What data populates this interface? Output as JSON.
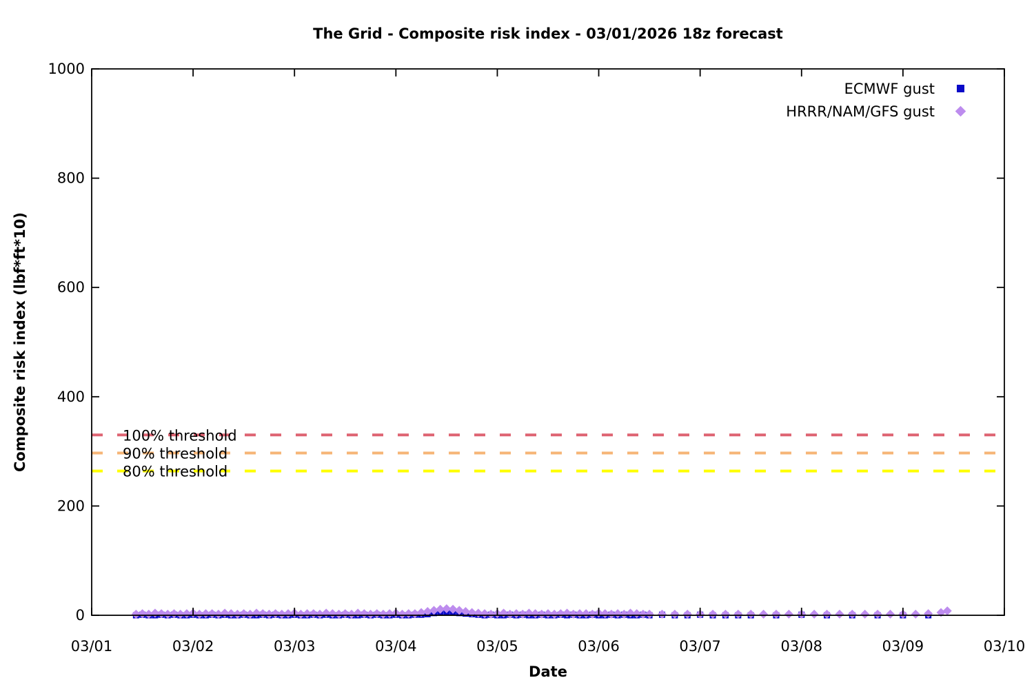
{
  "chart_data": {
    "type": "scatter",
    "title": "The Grid - Composite risk index - 03/01/2026 18z forecast",
    "xlabel": "Date",
    "ylabel": "Composite risk index (lbf*ft*10)",
    "x_unit": "days since 03/01 00:00",
    "xlim": [
      0,
      9
    ],
    "ylim": [
      0,
      1000
    ],
    "grid": false,
    "legend_position": "top-right",
    "x_ticks": {
      "positions": [
        0,
        1,
        2,
        3,
        4,
        5,
        6,
        7,
        8,
        9
      ],
      "labels": [
        "03/01",
        "03/02",
        "03/03",
        "03/04",
        "03/05",
        "03/06",
        "03/07",
        "03/08",
        "03/09",
        "03/10"
      ]
    },
    "y_ticks": {
      "positions": [
        0,
        200,
        400,
        600,
        800,
        1000
      ],
      "labels": [
        "0",
        "200",
        "400",
        "600",
        "800",
        "1000"
      ]
    },
    "thresholds": [
      {
        "label": "100% threshold",
        "value": 330,
        "color": "#de6472",
        "style": "dashed"
      },
      {
        "label": "90% threshold",
        "value": 297,
        "color": "#f6b577",
        "style": "dashed"
      },
      {
        "label": "80% threshold",
        "value": 264,
        "color": "#ffff00",
        "style": "dashed"
      }
    ],
    "series": [
      {
        "name": "ECMWF gust",
        "marker": "square",
        "color": "#0a0ac8",
        "points": [
          [
            0.4375,
            0
          ],
          [
            0.5,
            1
          ],
          [
            0.5625,
            0
          ],
          [
            0.625,
            0
          ],
          [
            0.6875,
            1
          ],
          [
            0.75,
            0
          ],
          [
            0.8125,
            1
          ],
          [
            0.875,
            0
          ],
          [
            0.9375,
            0
          ],
          [
            1,
            1
          ],
          [
            1.0625,
            0
          ],
          [
            1.125,
            0
          ],
          [
            1.1875,
            1
          ],
          [
            1.25,
            0
          ],
          [
            1.3125,
            1
          ],
          [
            1.375,
            0
          ],
          [
            1.4375,
            0
          ],
          [
            1.5,
            1
          ],
          [
            1.5625,
            0
          ],
          [
            1.625,
            0
          ],
          [
            1.6875,
            1
          ],
          [
            1.75,
            0
          ],
          [
            1.8125,
            1
          ],
          [
            1.875,
            0
          ],
          [
            1.9375,
            0
          ],
          [
            2,
            1
          ],
          [
            2.0625,
            0
          ],
          [
            2.125,
            0
          ],
          [
            2.1875,
            1
          ],
          [
            2.25,
            0
          ],
          [
            2.3125,
            1
          ],
          [
            2.375,
            0
          ],
          [
            2.4375,
            0
          ],
          [
            2.5,
            1
          ],
          [
            2.5625,
            0
          ],
          [
            2.625,
            0
          ],
          [
            2.6875,
            1
          ],
          [
            2.75,
            0
          ],
          [
            2.8125,
            1
          ],
          [
            2.875,
            0
          ],
          [
            2.9375,
            0
          ],
          [
            3,
            1
          ],
          [
            3.0625,
            0
          ],
          [
            3.125,
            0
          ],
          [
            3.1875,
            1
          ],
          [
            3.25,
            1
          ],
          [
            3.3125,
            2
          ],
          [
            3.375,
            4
          ],
          [
            3.4375,
            5
          ],
          [
            3.5,
            6
          ],
          [
            3.5625,
            5
          ],
          [
            3.625,
            4
          ],
          [
            3.6875,
            3
          ],
          [
            3.75,
            2
          ],
          [
            3.8125,
            1
          ],
          [
            3.875,
            0
          ],
          [
            3.9375,
            1
          ],
          [
            4,
            0
          ],
          [
            4.0625,
            0
          ],
          [
            4.125,
            1
          ],
          [
            4.1875,
            0
          ],
          [
            4.25,
            1
          ],
          [
            4.3125,
            0
          ],
          [
            4.375,
            0
          ],
          [
            4.4375,
            1
          ],
          [
            4.5,
            0
          ],
          [
            4.5625,
            0
          ],
          [
            4.625,
            1
          ],
          [
            4.6875,
            0
          ],
          [
            4.75,
            1
          ],
          [
            4.8125,
            0
          ],
          [
            4.875,
            0
          ],
          [
            4.9375,
            1
          ],
          [
            5,
            0
          ],
          [
            5.0625,
            0
          ],
          [
            5.125,
            1
          ],
          [
            5.1875,
            0
          ],
          [
            5.25,
            1
          ],
          [
            5.3125,
            0
          ],
          [
            5.375,
            0
          ],
          [
            5.4375,
            1
          ],
          [
            5.5,
            0
          ],
          [
            5.625,
            1
          ],
          [
            5.75,
            0
          ],
          [
            5.875,
            0
          ],
          [
            6,
            1
          ],
          [
            6.125,
            0
          ],
          [
            6.25,
            0
          ],
          [
            6.375,
            0
          ],
          [
            6.5,
            0
          ],
          [
            6.75,
            0
          ],
          [
            7,
            1
          ],
          [
            7.25,
            0
          ],
          [
            7.5,
            0
          ],
          [
            7.75,
            0
          ],
          [
            8,
            0
          ],
          [
            8.25,
            0
          ]
        ]
      },
      {
        "name": "HRRR/NAM/GFS gust",
        "marker": "diamond",
        "color": "#bd8cee",
        "points": [
          [
            0.4375,
            2
          ],
          [
            0.5,
            3
          ],
          [
            0.5625,
            2
          ],
          [
            0.625,
            4
          ],
          [
            0.6875,
            3
          ],
          [
            0.75,
            2
          ],
          [
            0.8125,
            3
          ],
          [
            0.875,
            2
          ],
          [
            0.9375,
            3
          ],
          [
            1,
            4
          ],
          [
            1.0625,
            2
          ],
          [
            1.125,
            3
          ],
          [
            1.1875,
            3
          ],
          [
            1.25,
            2
          ],
          [
            1.3125,
            4
          ],
          [
            1.375,
            3
          ],
          [
            1.4375,
            2
          ],
          [
            1.5,
            3
          ],
          [
            1.5625,
            2
          ],
          [
            1.625,
            4
          ],
          [
            1.6875,
            3
          ],
          [
            1.75,
            2
          ],
          [
            1.8125,
            3
          ],
          [
            1.875,
            2
          ],
          [
            1.9375,
            3
          ],
          [
            2,
            4
          ],
          [
            2.0625,
            2
          ],
          [
            2.125,
            3
          ],
          [
            2.1875,
            3
          ],
          [
            2.25,
            2
          ],
          [
            2.3125,
            4
          ],
          [
            2.375,
            3
          ],
          [
            2.4375,
            2
          ],
          [
            2.5,
            3
          ],
          [
            2.5625,
            2
          ],
          [
            2.625,
            4
          ],
          [
            2.6875,
            3
          ],
          [
            2.75,
            2
          ],
          [
            2.8125,
            3
          ],
          [
            2.875,
            2
          ],
          [
            2.9375,
            3
          ],
          [
            3,
            4
          ],
          [
            3.0625,
            2
          ],
          [
            3.125,
            3
          ],
          [
            3.1875,
            3
          ],
          [
            3.25,
            5
          ],
          [
            3.3125,
            7
          ],
          [
            3.375,
            9
          ],
          [
            3.4375,
            11
          ],
          [
            3.5,
            12
          ],
          [
            3.5625,
            11
          ],
          [
            3.625,
            9
          ],
          [
            3.6875,
            7
          ],
          [
            3.75,
            5
          ],
          [
            3.8125,
            4
          ],
          [
            3.875,
            3
          ],
          [
            3.9375,
            2
          ],
          [
            4,
            3
          ],
          [
            4.0625,
            4
          ],
          [
            4.125,
            2
          ],
          [
            4.1875,
            3
          ],
          [
            4.25,
            2
          ],
          [
            4.3125,
            4
          ],
          [
            4.375,
            3
          ],
          [
            4.4375,
            2
          ],
          [
            4.5,
            3
          ],
          [
            4.5625,
            2
          ],
          [
            4.625,
            3
          ],
          [
            4.6875,
            4
          ],
          [
            4.75,
            2
          ],
          [
            4.8125,
            3
          ],
          [
            4.875,
            3
          ],
          [
            4.9375,
            2
          ],
          [
            5,
            4
          ],
          [
            5.0625,
            3
          ],
          [
            5.125,
            2
          ],
          [
            5.1875,
            3
          ],
          [
            5.25,
            2
          ],
          [
            5.3125,
            4
          ],
          [
            5.375,
            3
          ],
          [
            5.4375,
            2
          ],
          [
            5.5,
            2
          ],
          [
            5.625,
            2
          ],
          [
            5.75,
            2
          ],
          [
            5.875,
            2
          ],
          [
            6,
            2
          ],
          [
            6.125,
            2
          ],
          [
            6.25,
            2
          ],
          [
            6.375,
            2
          ],
          [
            6.5,
            2
          ],
          [
            6.625,
            2
          ],
          [
            6.75,
            2
          ],
          [
            6.875,
            2
          ],
          [
            7,
            2
          ],
          [
            7.125,
            2
          ],
          [
            7.25,
            2
          ],
          [
            7.375,
            2
          ],
          [
            7.5,
            2
          ],
          [
            7.625,
            2
          ],
          [
            7.75,
            2
          ],
          [
            7.875,
            2
          ],
          [
            8,
            2
          ],
          [
            8.125,
            2
          ],
          [
            8.25,
            3
          ],
          [
            8.375,
            5
          ],
          [
            8.4375,
            8
          ]
        ]
      }
    ]
  }
}
